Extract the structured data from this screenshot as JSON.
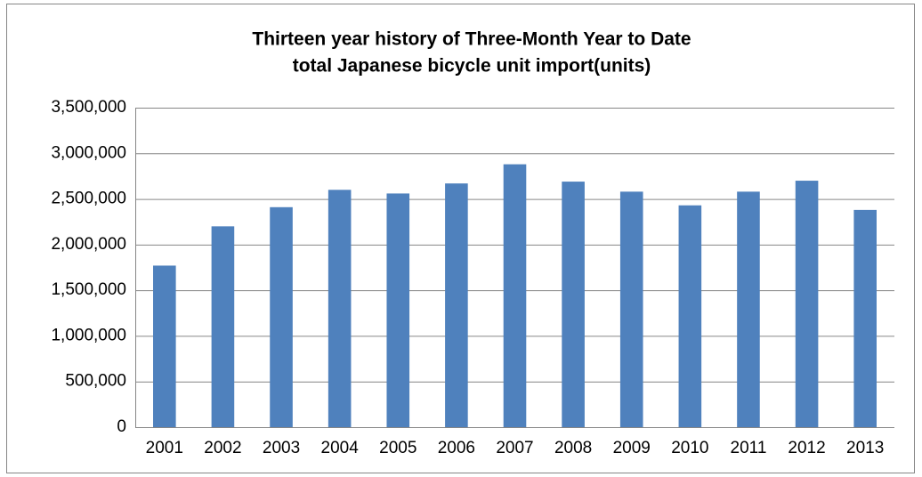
{
  "chart_data": {
    "type": "bar",
    "title": [
      "Thirteen year history of Three-Month Year to Date",
      "total Japanese bicycle unit import(units)"
    ],
    "categories": [
      "2001",
      "2002",
      "2003",
      "2004",
      "2005",
      "2006",
      "2007",
      "2008",
      "2009",
      "2010",
      "2011",
      "2012",
      "2013"
    ],
    "values": [
      1770000,
      2200000,
      2410000,
      2600000,
      2560000,
      2670000,
      2880000,
      2690000,
      2580000,
      2430000,
      2580000,
      2700000,
      2380000
    ],
    "color": "#4f81bd",
    "ylim": [
      0,
      3500000
    ],
    "yticks": [
      0,
      {
        "value": 500000,
        "label": "500,000"
      },
      {
        "value": 1000000,
        "label": "1,000,000"
      },
      {
        "value": 1500000,
        "label": "1,500,000"
      },
      {
        "value": 2000000,
        "label": "2,000,000"
      },
      {
        "value": 2500000,
        "label": "2,500,000"
      },
      {
        "value": 3000000,
        "label": "3,000,000"
      },
      {
        "value": 3500000,
        "label": "3,500,000"
      }
    ],
    "grid": true
  }
}
